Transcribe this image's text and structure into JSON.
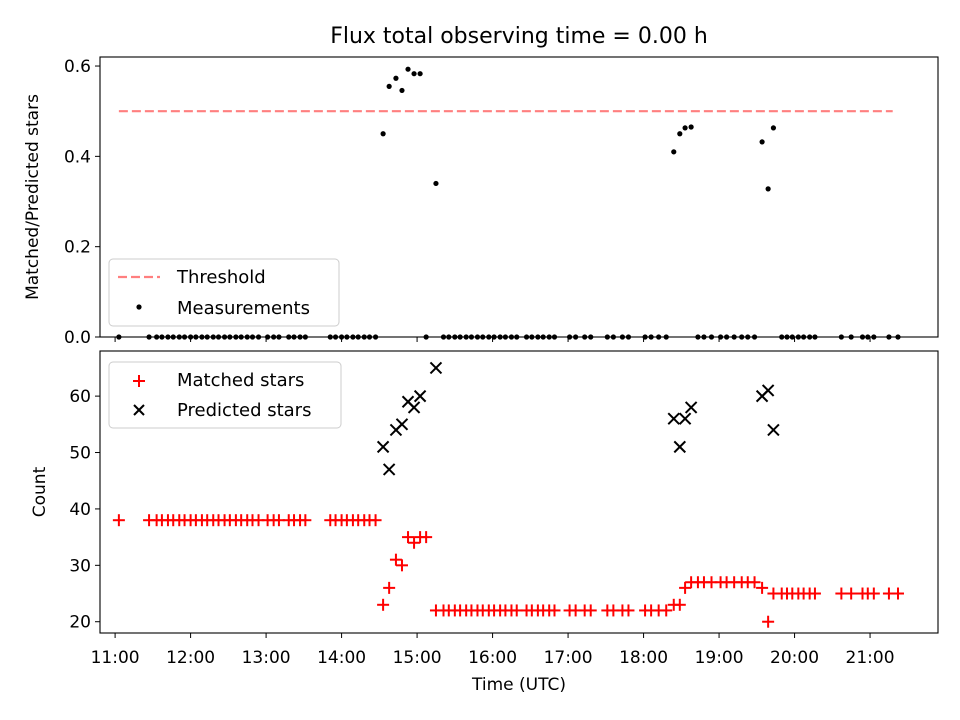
{
  "chart_data": [
    {
      "type": "scatter",
      "title": "Flux total observing time = 0.00 h",
      "xlabel": "",
      "ylabel": "Matched/Predicted stars",
      "xlim": [
        10.8,
        21.9
      ],
      "ylim": [
        0.0,
        0.62
      ],
      "yticks": [
        0.0,
        0.2,
        0.4,
        0.6
      ],
      "ytick_labels": [
        "0.0",
        "0.2",
        "0.4",
        "0.6"
      ],
      "legend_position": "lower-left",
      "threshold": {
        "name": "Threshold",
        "value": 0.5,
        "x_range": [
          11.05,
          21.3
        ],
        "color": "#ff7f7f"
      },
      "series": [
        {
          "name": "Measurements",
          "color": "#000000",
          "points": [
            [
              11.05,
              0.0
            ],
            [
              11.45,
              0.0
            ],
            [
              11.55,
              0.0
            ],
            [
              11.62,
              0.0
            ],
            [
              11.7,
              0.0
            ],
            [
              11.77,
              0.0
            ],
            [
              11.85,
              0.0
            ],
            [
              11.92,
              0.0
            ],
            [
              12.0,
              0.0
            ],
            [
              12.07,
              0.0
            ],
            [
              12.15,
              0.0
            ],
            [
              12.22,
              0.0
            ],
            [
              12.3,
              0.0
            ],
            [
              12.37,
              0.0
            ],
            [
              12.45,
              0.0
            ],
            [
              12.52,
              0.0
            ],
            [
              12.6,
              0.0
            ],
            [
              12.67,
              0.0
            ],
            [
              12.75,
              0.0
            ],
            [
              12.82,
              0.0
            ],
            [
              12.9,
              0.0
            ],
            [
              13.02,
              0.0
            ],
            [
              13.1,
              0.0
            ],
            [
              13.17,
              0.0
            ],
            [
              13.3,
              0.0
            ],
            [
              13.37,
              0.0
            ],
            [
              13.45,
              0.0
            ],
            [
              13.52,
              0.0
            ],
            [
              13.85,
              0.0
            ],
            [
              13.92,
              0.0
            ],
            [
              14.0,
              0.0
            ],
            [
              14.07,
              0.0
            ],
            [
              14.15,
              0.0
            ],
            [
              14.22,
              0.0
            ],
            [
              14.3,
              0.0
            ],
            [
              14.37,
              0.0
            ],
            [
              14.45,
              0.0
            ],
            [
              14.55,
              0.45
            ],
            [
              14.63,
              0.555
            ],
            [
              14.72,
              0.573
            ],
            [
              14.8,
              0.546
            ],
            [
              14.88,
              0.593
            ],
            [
              14.96,
              0.583
            ],
            [
              15.04,
              0.583
            ],
            [
              15.12,
              0.0
            ],
            [
              15.25,
              0.34
            ],
            [
              15.35,
              0.0
            ],
            [
              15.42,
              0.0
            ],
            [
              15.5,
              0.0
            ],
            [
              15.57,
              0.0
            ],
            [
              15.65,
              0.0
            ],
            [
              15.72,
              0.0
            ],
            [
              15.8,
              0.0
            ],
            [
              15.87,
              0.0
            ],
            [
              15.95,
              0.0
            ],
            [
              16.02,
              0.0
            ],
            [
              16.1,
              0.0
            ],
            [
              16.17,
              0.0
            ],
            [
              16.25,
              0.0
            ],
            [
              16.32,
              0.0
            ],
            [
              16.45,
              0.0
            ],
            [
              16.52,
              0.0
            ],
            [
              16.6,
              0.0
            ],
            [
              16.67,
              0.0
            ],
            [
              16.75,
              0.0
            ],
            [
              16.82,
              0.0
            ],
            [
              17.02,
              0.0
            ],
            [
              17.1,
              0.0
            ],
            [
              17.22,
              0.0
            ],
            [
              17.3,
              0.0
            ],
            [
              17.52,
              0.0
            ],
            [
              17.6,
              0.0
            ],
            [
              17.72,
              0.0
            ],
            [
              17.8,
              0.0
            ],
            [
              18.02,
              0.0
            ],
            [
              18.1,
              0.0
            ],
            [
              18.2,
              0.0
            ],
            [
              18.3,
              0.0
            ],
            [
              18.4,
              0.41
            ],
            [
              18.48,
              0.45
            ],
            [
              18.55,
              0.463
            ],
            [
              18.63,
              0.465
            ],
            [
              18.72,
              0.0
            ],
            [
              18.8,
              0.0
            ],
            [
              18.9,
              0.0
            ],
            [
              19.02,
              0.0
            ],
            [
              19.1,
              0.0
            ],
            [
              19.2,
              0.0
            ],
            [
              19.3,
              0.0
            ],
            [
              19.38,
              0.0
            ],
            [
              19.47,
              0.0
            ],
            [
              19.57,
              0.432
            ],
            [
              19.65,
              0.328
            ],
            [
              19.72,
              0.463
            ],
            [
              19.83,
              0.0
            ],
            [
              19.9,
              0.0
            ],
            [
              19.97,
              0.0
            ],
            [
              20.05,
              0.0
            ],
            [
              20.12,
              0.0
            ],
            [
              20.2,
              0.0
            ],
            [
              20.27,
              0.0
            ],
            [
              20.62,
              0.0
            ],
            [
              20.75,
              0.0
            ],
            [
              20.9,
              0.0
            ],
            [
              20.97,
              0.0
            ],
            [
              21.05,
              0.0
            ],
            [
              21.25,
              0.0
            ],
            [
              21.37,
              0.0
            ]
          ]
        }
      ]
    },
    {
      "type": "scatter",
      "title": "",
      "xlabel": "Time (UTC)",
      "ylabel": "Count",
      "xlim": [
        10.8,
        21.9
      ],
      "ylim": [
        18,
        68
      ],
      "xticks": [
        11,
        12,
        13,
        14,
        15,
        16,
        17,
        18,
        19,
        20,
        21
      ],
      "xtick_labels": [
        "11:00",
        "12:00",
        "13:00",
        "14:00",
        "15:00",
        "16:00",
        "17:00",
        "18:00",
        "19:00",
        "20:00",
        "21:00"
      ],
      "yticks": [
        20,
        30,
        40,
        50,
        60
      ],
      "ytick_labels": [
        "20",
        "30",
        "40",
        "50",
        "60"
      ],
      "legend_position": "upper-left",
      "series": [
        {
          "name": "Matched stars",
          "marker": "plus",
          "color": "#ff0000",
          "points": [
            [
              11.05,
              38
            ],
            [
              11.45,
              38
            ],
            [
              11.55,
              38
            ],
            [
              11.62,
              38
            ],
            [
              11.7,
              38
            ],
            [
              11.77,
              38
            ],
            [
              11.85,
              38
            ],
            [
              11.92,
              38
            ],
            [
              12.0,
              38
            ],
            [
              12.07,
              38
            ],
            [
              12.15,
              38
            ],
            [
              12.22,
              38
            ],
            [
              12.3,
              38
            ],
            [
              12.37,
              38
            ],
            [
              12.45,
              38
            ],
            [
              12.52,
              38
            ],
            [
              12.6,
              38
            ],
            [
              12.67,
              38
            ],
            [
              12.75,
              38
            ],
            [
              12.82,
              38
            ],
            [
              12.9,
              38
            ],
            [
              13.02,
              38
            ],
            [
              13.1,
              38
            ],
            [
              13.17,
              38
            ],
            [
              13.3,
              38
            ],
            [
              13.37,
              38
            ],
            [
              13.45,
              38
            ],
            [
              13.52,
              38
            ],
            [
              13.85,
              38
            ],
            [
              13.92,
              38
            ],
            [
              14.0,
              38
            ],
            [
              14.07,
              38
            ],
            [
              14.15,
              38
            ],
            [
              14.22,
              38
            ],
            [
              14.3,
              38
            ],
            [
              14.37,
              38
            ],
            [
              14.45,
              38
            ],
            [
              14.55,
              23
            ],
            [
              14.63,
              26
            ],
            [
              14.72,
              31
            ],
            [
              14.8,
              30
            ],
            [
              14.88,
              35
            ],
            [
              14.96,
              34
            ],
            [
              15.04,
              35
            ],
            [
              15.12,
              35
            ],
            [
              15.25,
              22
            ],
            [
              15.35,
              22
            ],
            [
              15.42,
              22
            ],
            [
              15.5,
              22
            ],
            [
              15.57,
              22
            ],
            [
              15.65,
              22
            ],
            [
              15.72,
              22
            ],
            [
              15.8,
              22
            ],
            [
              15.87,
              22
            ],
            [
              15.95,
              22
            ],
            [
              16.02,
              22
            ],
            [
              16.1,
              22
            ],
            [
              16.17,
              22
            ],
            [
              16.25,
              22
            ],
            [
              16.32,
              22
            ],
            [
              16.45,
              22
            ],
            [
              16.52,
              22
            ],
            [
              16.6,
              22
            ],
            [
              16.67,
              22
            ],
            [
              16.75,
              22
            ],
            [
              16.82,
              22
            ],
            [
              17.02,
              22
            ],
            [
              17.1,
              22
            ],
            [
              17.22,
              22
            ],
            [
              17.3,
              22
            ],
            [
              17.52,
              22
            ],
            [
              17.6,
              22
            ],
            [
              17.72,
              22
            ],
            [
              17.8,
              22
            ],
            [
              18.02,
              22
            ],
            [
              18.1,
              22
            ],
            [
              18.2,
              22
            ],
            [
              18.3,
              22
            ],
            [
              18.4,
              23
            ],
            [
              18.48,
              23
            ],
            [
              18.55,
              26
            ],
            [
              18.63,
              27
            ],
            [
              18.72,
              27
            ],
            [
              18.8,
              27
            ],
            [
              18.9,
              27
            ],
            [
              19.02,
              27
            ],
            [
              19.1,
              27
            ],
            [
              19.2,
              27
            ],
            [
              19.3,
              27
            ],
            [
              19.38,
              27
            ],
            [
              19.47,
              27
            ],
            [
              19.57,
              26
            ],
            [
              19.65,
              20
            ],
            [
              19.72,
              25
            ],
            [
              19.83,
              25
            ],
            [
              19.9,
              25
            ],
            [
              19.97,
              25
            ],
            [
              20.05,
              25
            ],
            [
              20.12,
              25
            ],
            [
              20.2,
              25
            ],
            [
              20.27,
              25
            ],
            [
              20.62,
              25
            ],
            [
              20.75,
              25
            ],
            [
              20.9,
              25
            ],
            [
              20.97,
              25
            ],
            [
              21.05,
              25
            ],
            [
              21.25,
              25
            ],
            [
              21.37,
              25
            ]
          ]
        },
        {
          "name": "Predicted stars",
          "marker": "x",
          "color": "#000000",
          "points": [
            [
              14.55,
              51
            ],
            [
              14.63,
              47
            ],
            [
              14.72,
              54
            ],
            [
              14.8,
              55
            ],
            [
              14.88,
              59
            ],
            [
              14.96,
              58
            ],
            [
              15.04,
              60
            ],
            [
              15.25,
              65
            ],
            [
              18.4,
              56
            ],
            [
              18.48,
              51
            ],
            [
              18.55,
              56
            ],
            [
              18.63,
              58
            ],
            [
              19.57,
              60
            ],
            [
              19.65,
              61
            ],
            [
              19.72,
              54
            ]
          ]
        }
      ]
    }
  ]
}
